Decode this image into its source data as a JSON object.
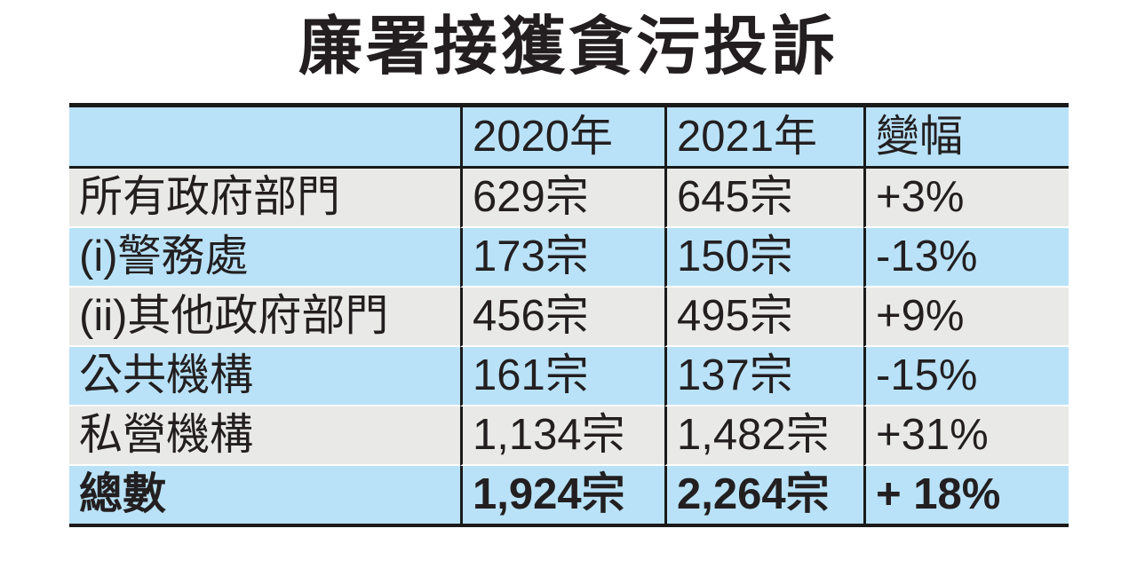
{
  "title": "廉署接獲貪污投訴",
  "colors": {
    "row_blue": "#b9e2f8",
    "row_gray": "#e9e9e7",
    "border_black": "#1a1a1a",
    "text": "#231f20",
    "background": "#ffffff"
  },
  "table": {
    "columns": [
      "",
      "2020年",
      "2021年",
      "變幅"
    ],
    "rows": [
      {
        "label": "所有政府部門",
        "y2020": "629宗",
        "y2021": "645宗",
        "change": "+3%"
      },
      {
        "label": "(i)警務處",
        "y2020": "173宗",
        "y2021": "150宗",
        "change": "-13%"
      },
      {
        "label": "(ii)其他政府部門",
        "y2020": "456宗",
        "y2021": "495宗",
        "change": "+9%"
      },
      {
        "label": "公共機構",
        "y2020": "161宗",
        "y2021": "137宗",
        "change": "-15%"
      },
      {
        "label": "私營機構",
        "y2020": "1,134宗",
        "y2021": "1,482宗",
        "change": "+31%"
      },
      {
        "label": "總數",
        "y2020": "1,924宗",
        "y2021": "2,264宗",
        "change": "+ 18%"
      }
    ]
  },
  "chart_data": {
    "type": "table",
    "title": "廉署接獲貪污投訴",
    "unit": "宗",
    "categories": [
      "所有政府部門",
      "(i)警務處",
      "(ii)其他政府部門",
      "公共機構",
      "私營機構",
      "總數"
    ],
    "series": [
      {
        "name": "2020年",
        "values": [
          629,
          173,
          456,
          161,
          1134,
          1924
        ]
      },
      {
        "name": "2021年",
        "values": [
          645,
          150,
          495,
          137,
          1482,
          2264
        ]
      },
      {
        "name": "變幅",
        "values": [
          "+3%",
          "-13%",
          "+9%",
          "-15%",
          "+31%",
          "+18%"
        ]
      }
    ],
    "layout_hints": {
      "header_fill": "#b9e2f8",
      "alternating_row_fills": [
        "#e9e9e7",
        "#b9e2f8"
      ],
      "total_row_bold": true
    }
  }
}
